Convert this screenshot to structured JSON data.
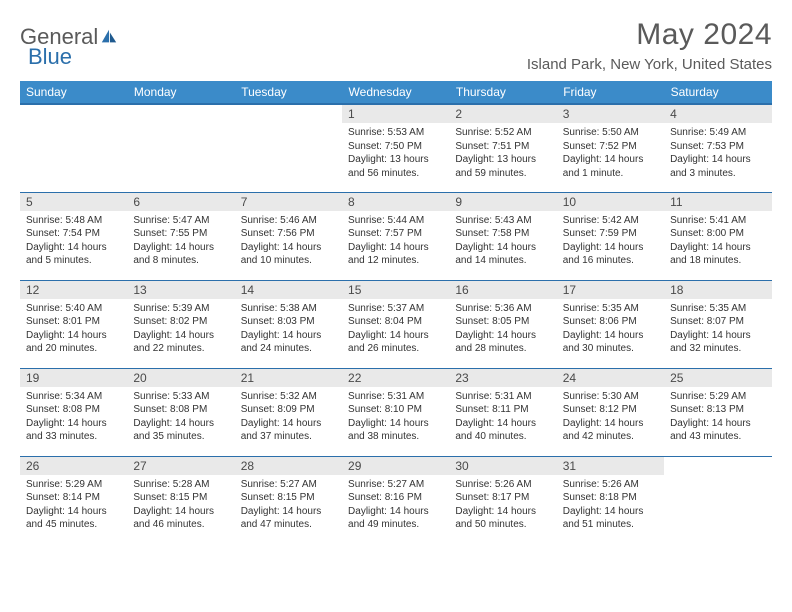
{
  "brand": {
    "general": "General",
    "blue": "Blue"
  },
  "title": {
    "month": "May 2024",
    "location": "Island Park, New York, United States"
  },
  "colors": {
    "header_bg": "#3b8bc9",
    "header_text": "#ffffff",
    "rule": "#2b6fab",
    "daynum_bg": "#e9e9e9",
    "text": "#333333",
    "title_text": "#5a5a5a",
    "logo_blue": "#2b6fab"
  },
  "weekdays": [
    "Sunday",
    "Monday",
    "Tuesday",
    "Wednesday",
    "Thursday",
    "Friday",
    "Saturday"
  ],
  "weeks": [
    [
      null,
      null,
      null,
      {
        "n": "1",
        "sr": "5:53 AM",
        "ss": "7:50 PM",
        "dl": "13 hours and 56 minutes."
      },
      {
        "n": "2",
        "sr": "5:52 AM",
        "ss": "7:51 PM",
        "dl": "13 hours and 59 minutes."
      },
      {
        "n": "3",
        "sr": "5:50 AM",
        "ss": "7:52 PM",
        "dl": "14 hours and 1 minute."
      },
      {
        "n": "4",
        "sr": "5:49 AM",
        "ss": "7:53 PM",
        "dl": "14 hours and 3 minutes."
      }
    ],
    [
      {
        "n": "5",
        "sr": "5:48 AM",
        "ss": "7:54 PM",
        "dl": "14 hours and 5 minutes."
      },
      {
        "n": "6",
        "sr": "5:47 AM",
        "ss": "7:55 PM",
        "dl": "14 hours and 8 minutes."
      },
      {
        "n": "7",
        "sr": "5:46 AM",
        "ss": "7:56 PM",
        "dl": "14 hours and 10 minutes."
      },
      {
        "n": "8",
        "sr": "5:44 AM",
        "ss": "7:57 PM",
        "dl": "14 hours and 12 minutes."
      },
      {
        "n": "9",
        "sr": "5:43 AM",
        "ss": "7:58 PM",
        "dl": "14 hours and 14 minutes."
      },
      {
        "n": "10",
        "sr": "5:42 AM",
        "ss": "7:59 PM",
        "dl": "14 hours and 16 minutes."
      },
      {
        "n": "11",
        "sr": "5:41 AM",
        "ss": "8:00 PM",
        "dl": "14 hours and 18 minutes."
      }
    ],
    [
      {
        "n": "12",
        "sr": "5:40 AM",
        "ss": "8:01 PM",
        "dl": "14 hours and 20 minutes."
      },
      {
        "n": "13",
        "sr": "5:39 AM",
        "ss": "8:02 PM",
        "dl": "14 hours and 22 minutes."
      },
      {
        "n": "14",
        "sr": "5:38 AM",
        "ss": "8:03 PM",
        "dl": "14 hours and 24 minutes."
      },
      {
        "n": "15",
        "sr": "5:37 AM",
        "ss": "8:04 PM",
        "dl": "14 hours and 26 minutes."
      },
      {
        "n": "16",
        "sr": "5:36 AM",
        "ss": "8:05 PM",
        "dl": "14 hours and 28 minutes."
      },
      {
        "n": "17",
        "sr": "5:35 AM",
        "ss": "8:06 PM",
        "dl": "14 hours and 30 minutes."
      },
      {
        "n": "18",
        "sr": "5:35 AM",
        "ss": "8:07 PM",
        "dl": "14 hours and 32 minutes."
      }
    ],
    [
      {
        "n": "19",
        "sr": "5:34 AM",
        "ss": "8:08 PM",
        "dl": "14 hours and 33 minutes."
      },
      {
        "n": "20",
        "sr": "5:33 AM",
        "ss": "8:08 PM",
        "dl": "14 hours and 35 minutes."
      },
      {
        "n": "21",
        "sr": "5:32 AM",
        "ss": "8:09 PM",
        "dl": "14 hours and 37 minutes."
      },
      {
        "n": "22",
        "sr": "5:31 AM",
        "ss": "8:10 PM",
        "dl": "14 hours and 38 minutes."
      },
      {
        "n": "23",
        "sr": "5:31 AM",
        "ss": "8:11 PM",
        "dl": "14 hours and 40 minutes."
      },
      {
        "n": "24",
        "sr": "5:30 AM",
        "ss": "8:12 PM",
        "dl": "14 hours and 42 minutes."
      },
      {
        "n": "25",
        "sr": "5:29 AM",
        "ss": "8:13 PM",
        "dl": "14 hours and 43 minutes."
      }
    ],
    [
      {
        "n": "26",
        "sr": "5:29 AM",
        "ss": "8:14 PM",
        "dl": "14 hours and 45 minutes."
      },
      {
        "n": "27",
        "sr": "5:28 AM",
        "ss": "8:15 PM",
        "dl": "14 hours and 46 minutes."
      },
      {
        "n": "28",
        "sr": "5:27 AM",
        "ss": "8:15 PM",
        "dl": "14 hours and 47 minutes."
      },
      {
        "n": "29",
        "sr": "5:27 AM",
        "ss": "8:16 PM",
        "dl": "14 hours and 49 minutes."
      },
      {
        "n": "30",
        "sr": "5:26 AM",
        "ss": "8:17 PM",
        "dl": "14 hours and 50 minutes."
      },
      {
        "n": "31",
        "sr": "5:26 AM",
        "ss": "8:18 PM",
        "dl": "14 hours and 51 minutes."
      },
      null
    ]
  ],
  "labels": {
    "sunrise": "Sunrise:",
    "sunset": "Sunset:",
    "daylight": "Daylight:"
  }
}
